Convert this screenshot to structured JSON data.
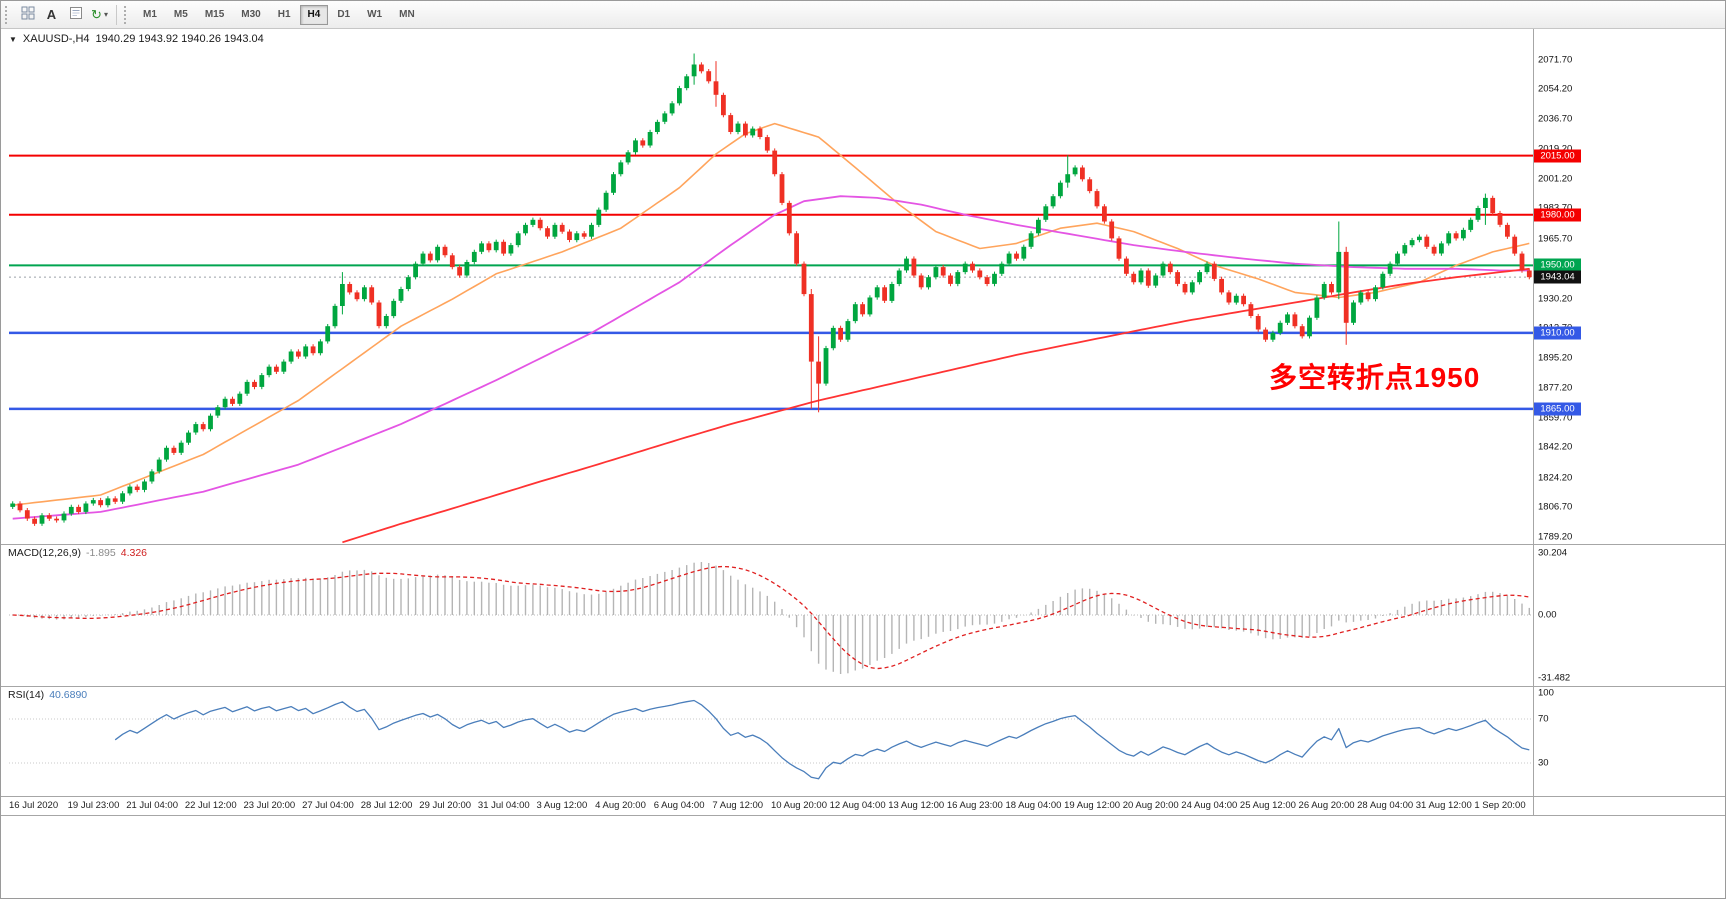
{
  "toolbar": {
    "a_button": "A",
    "timeframes": [
      "M1",
      "M5",
      "M15",
      "M30",
      "H1",
      "H4",
      "D1",
      "W1",
      "MN"
    ],
    "active_timeframe": "H4",
    "icons": [
      "toolbar-grip",
      "chart-grid-icon",
      "text-a-icon",
      "document-icon",
      "refresh-icon",
      "dropdown-chevron"
    ]
  },
  "chart": {
    "title_symbol": "XAUUSD-,H4",
    "title_ohlc": "1940.29 1943.92 1940.26 1943.04",
    "annotation": {
      "text": "多空转折点1950",
      "color": "#ff0000"
    }
  },
  "indicators": {
    "macd": {
      "name": "MACD(12,26,9)",
      "main_value": "-1.895",
      "signal_value": "4.326",
      "axis_labels": [
        "30.204",
        "0.00",
        "-31.482"
      ]
    },
    "rsi": {
      "name": "RSI(14)",
      "value": "40.6890",
      "axis_labels": [
        "100",
        "70",
        "30"
      ],
      "levels": [
        70,
        30
      ]
    }
  },
  "chart_data": {
    "type": "candlestick",
    "symbol": "XAUUSD",
    "timeframe": "H4",
    "ylim": [
      1785,
      2090
    ],
    "up_color": "#00a63f",
    "down_color": "#ef3024",
    "price_axis_labels": [
      "2071.70",
      "2054.20",
      "2036.70",
      "2019.20",
      "2001.20",
      "1983.70",
      "1965.70",
      "1948.20",
      "1930.20",
      "1912.70",
      "1895.20",
      "1877.20",
      "1859.70",
      "1842.20",
      "1824.20",
      "1806.70",
      "1789.20"
    ],
    "time_labels": [
      "16 Jul 2020",
      "19 Jul 23:00",
      "21 Jul 04:00",
      "22 Jul 12:00",
      "23 Jul 20:00",
      "27 Jul 04:00",
      "28 Jul 12:00",
      "29 Jul 20:00",
      "31 Jul 04:00",
      "3 Aug 12:00",
      "4 Aug 20:00",
      "6 Aug 04:00",
      "7 Aug 12:00",
      "10 Aug 20:00",
      "12 Aug 04:00",
      "13 Aug 12:00",
      "16 Aug 23:00",
      "18 Aug 04:00",
      "19 Aug 12:00",
      "20 Aug 20:00",
      "24 Aug 04:00",
      "25 Aug 12:00",
      "26 Aug 20:00",
      "28 Aug 04:00",
      "31 Aug 12:00",
      "1 Sep 20:00"
    ],
    "levels": [
      {
        "label": "2015.00",
        "price": 2015.0,
        "color": "#f40000",
        "width": 2
      },
      {
        "label": "1980.00",
        "price": 1980.0,
        "color": "#f40000",
        "width": 2
      },
      {
        "label": "1950.00",
        "price": 1950.0,
        "color": "#00a550",
        "width": 2
      },
      {
        "label": "1910.00",
        "price": 1910.0,
        "color": "#3459e6",
        "width": 2.5
      },
      {
        "label": "1865.00",
        "price": 1865.0,
        "color": "#3459e6",
        "width": 2.5
      }
    ],
    "current_price": {
      "label": "1943.04",
      "price": 1943.04,
      "badge_color": "#111111"
    },
    "candles": [
      1809,
      1805,
      1800,
      1797,
      1802,
      1800,
      1799,
      1803,
      1807,
      1804,
      1809,
      1811,
      1808,
      1812,
      1810,
      1815,
      1819,
      1817,
      1822,
      1828,
      1835,
      1842,
      1839,
      1845,
      1851,
      1856,
      1853,
      1861,
      1866,
      1871,
      1868,
      1874,
      1881,
      1878,
      1885,
      1890,
      1887,
      1893,
      1899,
      1896,
      1902,
      1898,
      1905,
      1914,
      1926,
      [
        1939,
        1946,
        1921
      ],
      1934,
      1930,
      1937,
      1928,
      1914,
      1920,
      1929,
      1936,
      1943,
      1951,
      1957,
      1953,
      1961,
      1956,
      1949,
      1944,
      1952,
      1958,
      1963,
      1959,
      1964,
      1957,
      1962,
      1969,
      1974,
      1977,
      1972,
      1967,
      1974,
      1970,
      1965,
      1969,
      1967,
      1974,
      1983,
      1993,
      2004,
      2011,
      2017,
      2024,
      2021,
      2029,
      2035,
      2040,
      2046,
      2055,
      2062,
      [
        2069,
        2075.5,
        2057
      ],
      2065,
      2059,
      [
        2051,
        2071,
        2044
      ],
      2039,
      2029,
      2034,
      2027,
      2031,
      2026,
      2018,
      2004,
      1987,
      1969,
      1951,
      1933,
      [
        1893,
        1936,
        1865
      ],
      [
        1880,
        1908,
        1863
      ],
      1901,
      1913,
      1906,
      1917,
      1927,
      1921,
      1931,
      1937,
      1929,
      1939,
      1947,
      1954,
      1944,
      1937,
      1943,
      1949,
      1944,
      1939,
      1946,
      1951,
      1947,
      1943,
      1939,
      1945,
      1951,
      1957,
      1954,
      1961,
      1969,
      1977,
      1985,
      1991,
      1999,
      [
        2004,
        2015.3,
        1996
      ],
      2008,
      2001,
      1994,
      1985,
      1976,
      1966,
      1954,
      1945,
      1940,
      1947,
      1938,
      1944,
      1951,
      1946,
      1939,
      1934,
      1940,
      1946,
      1951,
      1942,
      1934,
      1928,
      1932,
      1927,
      1920,
      1912,
      1906,
      1910,
      1916,
      1921,
      1914,
      1908,
      1919,
      1931,
      1939,
      1934,
      [
        1958,
        1976,
        1930
      ],
      [
        1916,
        1961,
        1903
      ],
      1928,
      1934,
      1930,
      1937,
      1945,
      1951,
      1957,
      1962,
      1965,
      1967,
      1961,
      1957,
      1963,
      1969,
      1966,
      1971,
      1977,
      1984,
      [
        1990,
        1992.5,
        1974
      ],
      1981,
      1974,
      1967,
      1957,
      1947,
      1943.04
    ],
    "ma_lines": [
      {
        "name": "ma-orange",
        "color": "#ffa45c",
        "width": 1.6,
        "points": [
          [
            0,
            1808
          ],
          [
            12,
            1814
          ],
          [
            26,
            1838
          ],
          [
            39,
            1870
          ],
          [
            46,
            1892
          ],
          [
            53,
            1914
          ],
          [
            60,
            1930
          ],
          [
            66,
            1945
          ],
          [
            75,
            1958
          ],
          [
            83,
            1972
          ],
          [
            91,
            1996
          ],
          [
            96,
            2016
          ],
          [
            100,
            2028
          ],
          [
            104,
            2034
          ],
          [
            110,
            2026
          ],
          [
            115,
            2008
          ],
          [
            121,
            1986
          ],
          [
            126,
            1970
          ],
          [
            132,
            1960
          ],
          [
            137,
            1963
          ],
          [
            143,
            1972
          ],
          [
            148,
            1975
          ],
          [
            153,
            1970
          ],
          [
            159,
            1960
          ],
          [
            164,
            1950
          ],
          [
            170,
            1942
          ],
          [
            175,
            1934
          ],
          [
            181,
            1931
          ],
          [
            186,
            1934
          ],
          [
            192,
            1940
          ],
          [
            197,
            1950
          ],
          [
            202,
            1958
          ],
          [
            207,
            1963
          ]
        ]
      },
      {
        "name": "ma-magenta",
        "color": "#e455e4",
        "width": 1.8,
        "points": [
          [
            0,
            1800
          ],
          [
            12,
            1804
          ],
          [
            26,
            1816
          ],
          [
            39,
            1832
          ],
          [
            53,
            1856
          ],
          [
            66,
            1882
          ],
          [
            79,
            1910
          ],
          [
            91,
            1940
          ],
          [
            98,
            1962
          ],
          [
            104,
            1980
          ],
          [
            108,
            1988
          ],
          [
            113,
            1991
          ],
          [
            118,
            1990
          ],
          [
            124,
            1986
          ],
          [
            130,
            1980
          ],
          [
            137,
            1974
          ],
          [
            145,
            1968
          ],
          [
            153,
            1962
          ],
          [
            160,
            1958
          ],
          [
            168,
            1954
          ],
          [
            175,
            1951
          ],
          [
            183,
            1949
          ],
          [
            190,
            1948
          ],
          [
            197,
            1948
          ],
          [
            203,
            1947
          ],
          [
            207,
            1947
          ]
        ]
      },
      {
        "name": "ma-red",
        "color": "#ff3333",
        "width": 1.8,
        "points": [
          [
            45,
            1786
          ],
          [
            53,
            1797
          ],
          [
            60,
            1806
          ],
          [
            66,
            1814
          ],
          [
            72,
            1822
          ],
          [
            79,
            1831
          ],
          [
            85,
            1839
          ],
          [
            91,
            1847
          ],
          [
            98,
            1856
          ],
          [
            104,
            1863
          ],
          [
            110,
            1870
          ],
          [
            118,
            1878
          ],
          [
            124,
            1884
          ],
          [
            130,
            1890
          ],
          [
            137,
            1897
          ],
          [
            145,
            1904
          ],
          [
            153,
            1911
          ],
          [
            160,
            1917
          ],
          [
            168,
            1923
          ],
          [
            175,
            1928
          ],
          [
            183,
            1934
          ],
          [
            190,
            1939
          ],
          [
            197,
            1943
          ],
          [
            203,
            1946
          ],
          [
            207,
            1948
          ]
        ]
      }
    ],
    "macd": {
      "fast": 12,
      "slow": 26,
      "signal": 9,
      "histogram_color": "#b5b5b5",
      "signal_color": "#e02020"
    },
    "rsi": {
      "period": 14,
      "color": "#4a7ebb"
    }
  }
}
